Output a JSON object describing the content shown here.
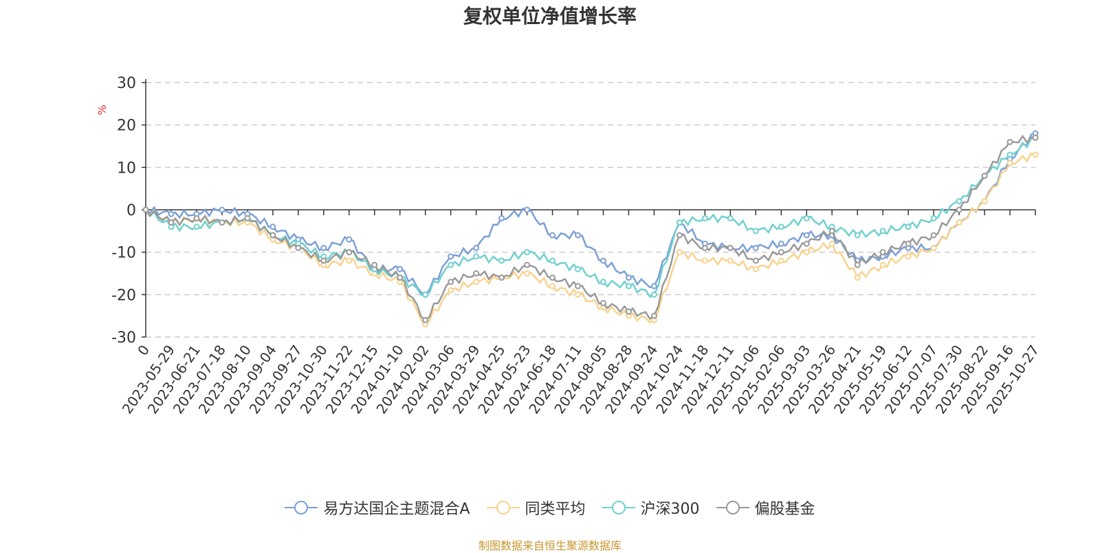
{
  "chart_data": {
    "type": "line",
    "title": "复权单位净值增长率",
    "ylabel": "%",
    "ylim": [
      -30,
      30
    ],
    "yticks": [
      30,
      20,
      10,
      0,
      -10,
      -20,
      -30
    ],
    "x_labels": [
      "0",
      "2023-05-29",
      "2023-06-21",
      "2023-07-18",
      "2023-08-10",
      "2023-09-04",
      "2023-09-27",
      "2023-10-30",
      "2023-11-22",
      "2023-12-15",
      "2024-01-10",
      "2024-02-02",
      "2024-03-06",
      "2024-03-29",
      "2024-04-25",
      "2024-05-23",
      "2024-06-18",
      "2024-07-11",
      "2024-08-05",
      "2024-08-28",
      "2024-09-24",
      "2024-10-24",
      "2024-11-18",
      "2024-12-11",
      "2025-01-06",
      "2025-02-06",
      "2025-03-03",
      "2025-03-26",
      "2025-04-21",
      "2025-05-19",
      "2025-06-12",
      "2025-07-07",
      "2025-07-30",
      "2025-08-22",
      "2025-09-16",
      "2025-10-27"
    ],
    "series": [
      {
        "name": "易方达国企主题混合A",
        "color": "#7b9fd6",
        "values": [
          0,
          -1,
          -1,
          0,
          -1,
          -4,
          -7,
          -9,
          -7,
          -14,
          -14,
          -20,
          -11,
          -9,
          -2,
          0,
          -6,
          -6,
          -12,
          -16,
          -18,
          -3,
          -8,
          -9,
          -9,
          -8,
          -6,
          -6,
          -12,
          -11,
          -9,
          -9,
          -3,
          2,
          12,
          18
        ]
      },
      {
        "name": "同类平均",
        "color": "#f8d28d",
        "values": [
          0,
          -3,
          -2,
          -3,
          -3,
          -7,
          -9,
          -13,
          -12,
          -15,
          -17,
          -27,
          -19,
          -17,
          -16,
          -15,
          -18,
          -20,
          -23,
          -25,
          -26,
          -10,
          -12,
          -12,
          -14,
          -12,
          -10,
          -8,
          -16,
          -13,
          -11,
          -9,
          -3,
          2,
          11,
          13
        ]
      },
      {
        "name": "沪深300",
        "color": "#6fd0cf",
        "values": [
          0,
          -4,
          -4,
          -3,
          -2,
          -6,
          -8,
          -11,
          -10,
          -14,
          -16,
          -20,
          -13,
          -11,
          -12,
          -10,
          -12,
          -14,
          -17,
          -18,
          -20,
          -3,
          -2,
          -2,
          -5,
          -4,
          -2,
          -4,
          -6,
          -5,
          -4,
          -2,
          2,
          8,
          13,
          17
        ]
      },
      {
        "name": "偏股基金",
        "color": "#999999",
        "values": [
          0,
          -3,
          -2,
          -3,
          -2,
          -6,
          -9,
          -12,
          -10,
          -13,
          -16,
          -26,
          -17,
          -15,
          -16,
          -13,
          -16,
          -18,
          -22,
          -24,
          -25,
          -6,
          -9,
          -9,
          -12,
          -10,
          -8,
          -5,
          -13,
          -10,
          -8,
          -6,
          0,
          8,
          16,
          17
        ]
      }
    ]
  },
  "source_note": "制图数据来自恒生聚源数据库"
}
